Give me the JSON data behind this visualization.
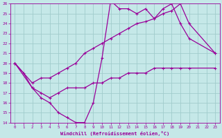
{
  "bg_color": "#c5e8e8",
  "line_color": "#990099",
  "grid_color": "#a0cccc",
  "xlabel": "Windchill (Refroidissement éolien,°C)",
  "ylim": [
    14,
    26
  ],
  "xlim": [
    -0.5,
    23.5
  ],
  "yticks": [
    14,
    15,
    16,
    17,
    18,
    19,
    20,
    21,
    22,
    23,
    24,
    25,
    26
  ],
  "xticks": [
    0,
    1,
    2,
    3,
    4,
    5,
    6,
    7,
    8,
    9,
    10,
    11,
    12,
    13,
    14,
    15,
    16,
    17,
    18,
    19,
    20,
    21,
    22,
    23
  ],
  "line1_x": [
    0,
    1,
    2,
    3,
    4,
    5,
    6,
    7,
    8,
    9,
    10,
    11,
    12,
    13,
    14,
    15,
    16,
    17,
    18,
    19,
    20,
    23
  ],
  "line1_y": [
    20,
    19,
    17.5,
    16.5,
    16,
    15,
    14.5,
    14,
    14,
    16,
    20.5,
    26.3,
    25.5,
    25.5,
    25,
    25.5,
    24.5,
    25.5,
    26,
    24,
    22.5,
    21
  ],
  "line2_x": [
    0,
    2,
    3,
    4,
    5,
    6,
    7,
    8,
    9,
    10,
    11,
    12,
    13,
    14,
    15,
    16,
    17,
    18,
    19,
    20,
    23
  ],
  "line2_y": [
    20,
    18,
    18.5,
    18.5,
    19,
    19.5,
    20,
    21,
    21.5,
    22,
    22.5,
    23,
    23.5,
    24,
    24.2,
    24.5,
    25,
    25.3,
    26,
    24,
    21
  ],
  "line3_x": [
    0,
    2,
    3,
    4,
    5,
    6,
    7,
    8,
    9,
    10,
    11,
    12,
    13,
    14,
    15,
    16,
    17,
    18,
    19,
    20,
    23
  ],
  "line3_y": [
    20,
    17.5,
    17,
    16.5,
    17,
    17.5,
    17.5,
    17.5,
    18,
    18,
    18.5,
    18.5,
    19,
    19,
    19,
    19.5,
    19.5,
    19.5,
    19.5,
    19.5,
    19.5
  ]
}
